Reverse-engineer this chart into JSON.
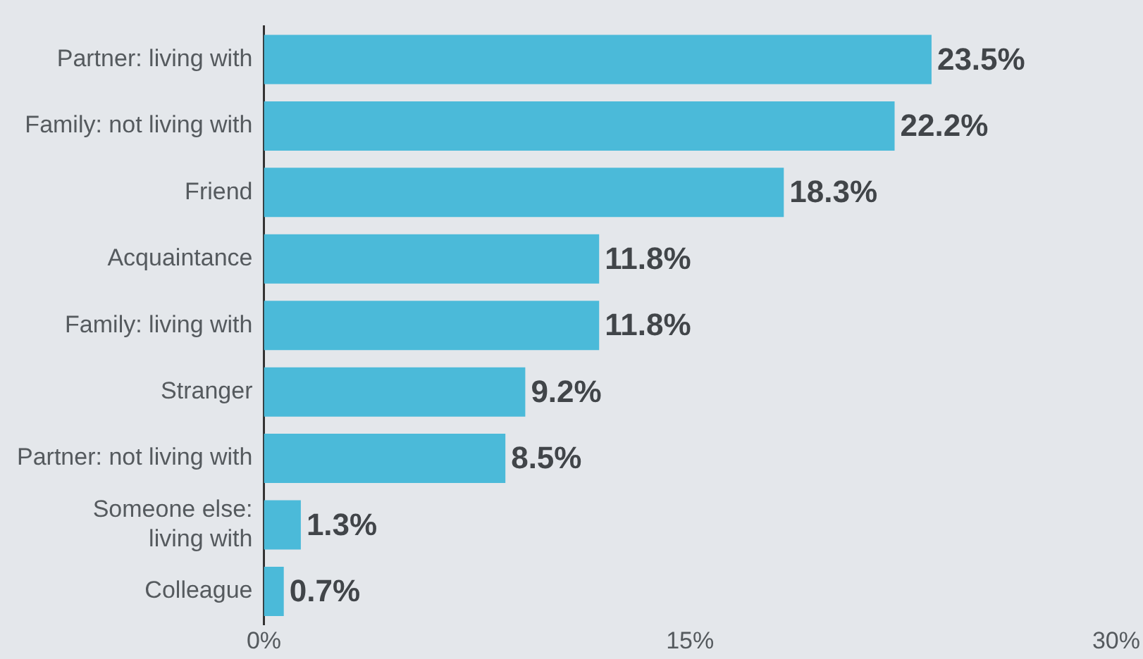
{
  "chart_data": {
    "type": "bar",
    "orientation": "horizontal",
    "categories": [
      "Partner: living with",
      "Family: not living with",
      "Friend",
      "Acquaintance",
      "Family: living with",
      "Stranger",
      "Partner: not living with",
      "Someone else:\nliving with",
      "Colleague"
    ],
    "values": [
      23.5,
      22.2,
      18.3,
      11.8,
      11.8,
      9.2,
      8.5,
      1.3,
      0.7
    ],
    "value_labels": [
      "23.5%",
      "22.2%",
      "18.3%",
      "11.8%",
      "11.8%",
      "9.2%",
      "8.5%",
      "1.3%",
      "0.7%"
    ],
    "color": "#4bbad9",
    "xlim": [
      0,
      30
    ],
    "xticks": [
      {
        "value": 0,
        "label": "0%"
      },
      {
        "value": 15,
        "label": "15%"
      },
      {
        "value": 30,
        "label": "30%"
      }
    ],
    "grid": false,
    "legend": false
  }
}
